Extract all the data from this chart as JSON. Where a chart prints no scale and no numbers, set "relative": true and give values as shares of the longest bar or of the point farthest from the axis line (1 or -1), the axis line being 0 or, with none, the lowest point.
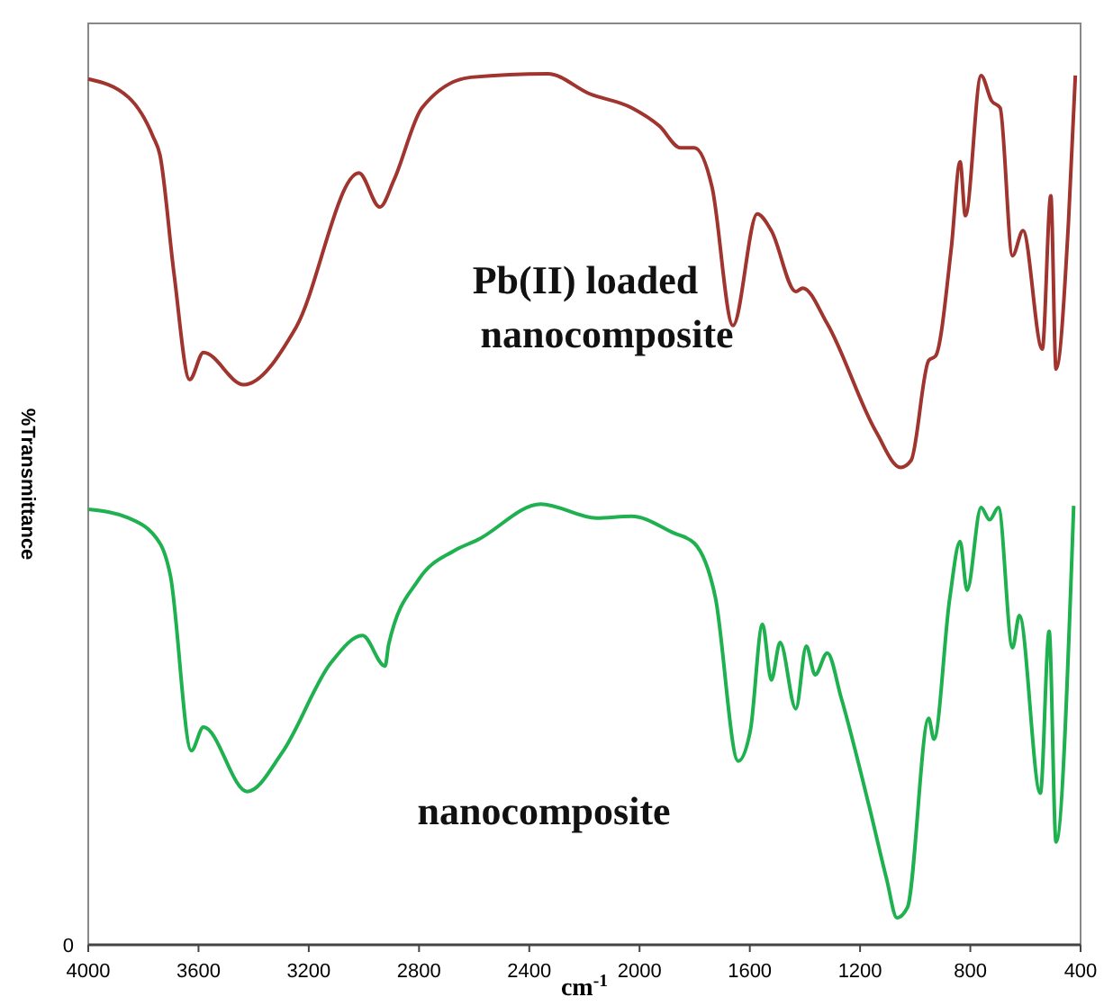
{
  "chart_data": {
    "type": "line",
    "relative": true,
    "xlabel": "cm$^{-1}$",
    "ylabel": "%Transmittance",
    "xlim": [
      4000,
      400
    ],
    "xticks": [
      4000,
      3600,
      3200,
      2800,
      2400,
      2000,
      1600,
      1200,
      800,
      400
    ],
    "annotations": [
      "0"
    ],
    "grid": false,
    "marker": "none",
    "line_style": "solid",
    "series": [
      {
        "name": "Pb(II) loaded nanocomposite",
        "color": "#a0342f",
        "x": [
          4000,
          3854,
          3765,
          3740,
          3689,
          3632,
          3582,
          3436,
          3246,
          3018,
          2942,
          2891,
          2789,
          2612,
          2333,
          2181,
          2029,
          1928,
          1851,
          1801,
          1737,
          1661,
          1573,
          1522,
          1433,
          1408,
          1319,
          1142,
          1053,
          1015,
          951,
          926,
          869,
          837,
          818,
          761,
          723,
          692,
          647,
          609,
          539,
          508,
          489,
          444,
          419
        ],
        "values": [
          0.994,
          0.973,
          0.928,
          0.907,
          0.771,
          0.649,
          0.68,
          0.643,
          0.709,
          0.886,
          0.847,
          0.878,
          0.961,
          0.996,
          1,
          0.977,
          0.961,
          0.94,
          0.915,
          0.915,
          0.87,
          0.711,
          0.839,
          0.82,
          0.75,
          0.754,
          0.713,
          0.589,
          0.548,
          0.556,
          0.671,
          0.676,
          0.8,
          0.899,
          0.837,
          0.998,
          0.969,
          0.961,
          0.791,
          0.82,
          0.684,
          0.86,
          0.661,
          0.829,
          0.998
        ]
      },
      {
        "name": "nanocomposite",
        "color": "#1fb050",
        "x": [
          4000,
          3854,
          3740,
          3702,
          3626,
          3582,
          3423,
          3296,
          3119,
          3005,
          2923,
          2910,
          2802,
          2675,
          2587,
          2358,
          2156,
          2029,
          1877,
          1801,
          1725,
          1642,
          1598,
          1554,
          1522,
          1490,
          1433,
          1395,
          1363,
          1319,
          1268,
          1167,
          1104,
          1066,
          1028,
          951,
          932,
          875,
          837,
          812,
          761,
          730,
          698,
          647,
          622,
          546,
          514,
          489,
          425
        ],
        "values": [
          0.5,
          0.49,
          0.461,
          0.424,
          0.223,
          0.25,
          0.176,
          0.221,
          0.324,
          0.355,
          0.32,
          0.345,
          0.419,
          0.452,
          0.465,
          0.506,
          0.49,
          0.492,
          0.473,
          0.461,
          0.399,
          0.211,
          0.246,
          0.368,
          0.304,
          0.347,
          0.271,
          0.343,
          0.31,
          0.335,
          0.283,
          0.159,
          0.076,
          0.031,
          0.043,
          0.26,
          0.236,
          0.397,
          0.463,
          0.407,
          0.502,
          0.488,
          0.502,
          0.341,
          0.378,
          0.174,
          0.36,
          0.118,
          0.504
        ]
      }
    ]
  }
}
